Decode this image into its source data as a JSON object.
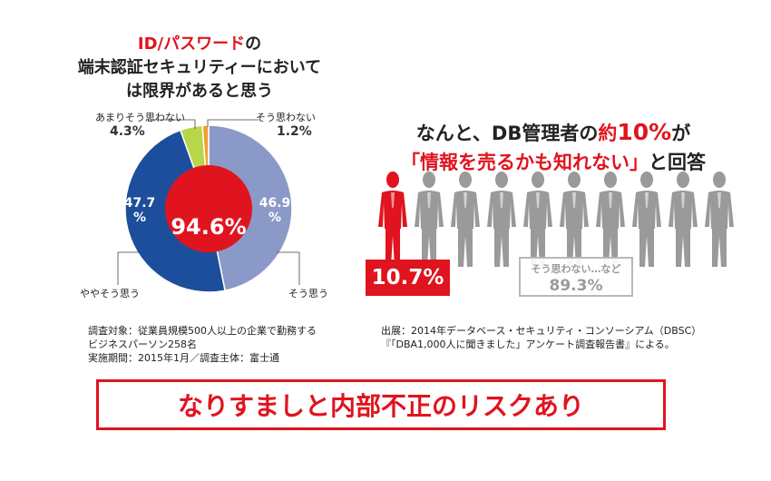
{
  "left_title": {
    "line1_red": "ID/パスワード",
    "line1_black": "の",
    "line2": "端末認証セキュリティーにおいて",
    "line3": "は限界があると思う"
  },
  "chart_data": [
    {
      "type": "pie",
      "style": "donut-with-center-highlight",
      "slices": [
        {
          "label": "そう思う",
          "value": 46.9,
          "color": "#8b99c8"
        },
        {
          "label": "ややそう思う",
          "value": 47.7,
          "color": "#1d4e9b"
        },
        {
          "label": "あまりそう思わない",
          "value": 4.3,
          "color": "#b8d64a"
        },
        {
          "label": "そう思わない",
          "value": 1.2,
          "color": "#f0a030"
        }
      ],
      "center": {
        "value": 94.6,
        "text": "94.6%",
        "color": "#e0141e"
      }
    },
    {
      "type": "pictogram",
      "title_line1": "なんと、DB管理者の約10%が",
      "title_line2": "「情報を売るかも知れない」と回答",
      "total_icons": 10,
      "highlight_icons": 1,
      "highlight_color": "#e0141e",
      "other_color": "#9a9a9a",
      "values": [
        {
          "label": "",
          "value": 10.7,
          "text": "10.7%"
        },
        {
          "label": "そう思わない…など",
          "value": 89.3,
          "text": "89.3%"
        }
      ]
    }
  ],
  "pie_labels": {
    "so_omou": "そう思う",
    "yaya": "ややそう思う",
    "amari": "あまりそう思わない",
    "amari_pct": "4.3%",
    "omowanai": "そう思わない",
    "omowanai_pct": "1.2%",
    "slice_so_line1": "46.9",
    "slice_so_line2": "%",
    "slice_yaya_line1": "47.7",
    "slice_yaya_line2": "%"
  },
  "title_right": {
    "line1_a": "なんと、DB管理者の",
    "line1_red_a": "約",
    "line1_red_b": "10%",
    "line1_b": "が",
    "line2_red": "「情報を売るかも知れない」",
    "line2_black": "と回答"
  },
  "notes_left": {
    "line1": "調査対象：従業員規模500人以上の企業で勤務する",
    "line2": "ビジネスパーソン258名",
    "line3": "実施期間：2015年1月／調査主体：富士通"
  },
  "notes_right": {
    "line1": "出展：2014年データベース・セキュリティ・コンソーシアム（DBSC）",
    "line2": "『「DBA1,000人に聞きました」アンケート調査報告書』による。"
  },
  "banner": "なりすましと内部不正のリスクあり"
}
